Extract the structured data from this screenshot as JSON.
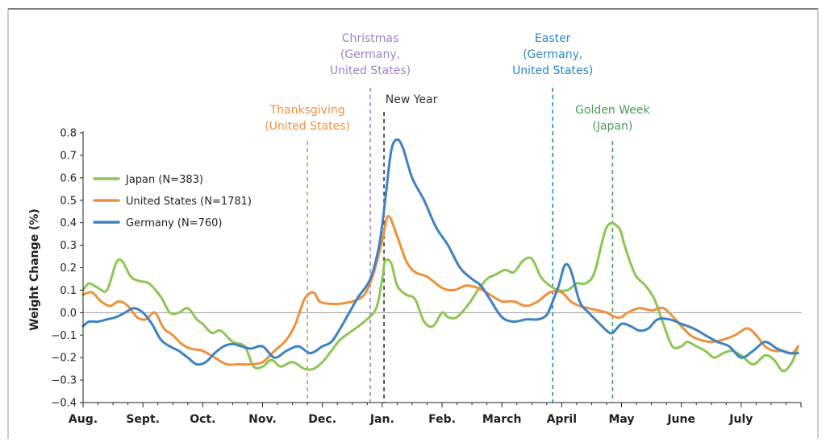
{
  "chart_data": {
    "type": "line",
    "ylabel": "Weight Change (%)",
    "xlabel": "",
    "ylim": [
      -0.4,
      0.8
    ],
    "yticks": [
      -0.4,
      -0.3,
      -0.2,
      -0.1,
      0.0,
      0.1,
      0.2,
      0.3,
      0.4,
      0.5,
      0.6,
      0.7,
      0.8
    ],
    "ytick_labels": [
      "−0.4",
      "−0.3",
      "−0.2",
      "−0.1",
      "0.0",
      "0.1",
      "0.2",
      "0.3",
      "0.4",
      "0.5",
      "0.6",
      "0.7",
      "0.8"
    ],
    "xlim": [
      0,
      12
    ],
    "x_unit_note": "",
    "months": [
      "Aug.",
      "Sept.",
      "Oct.",
      "Nov.",
      "Dec.",
      "Jan.",
      "Feb.",
      "March",
      "April",
      "May",
      "June",
      "July"
    ],
    "legend_position": "top-left",
    "series": [
      {
        "name": "Japan (N=383)",
        "color": "#8cc653",
        "x": [
          0,
          0.1,
          0.25,
          0.4,
          0.55,
          0.65,
          0.8,
          0.95,
          1.1,
          1.3,
          1.45,
          1.6,
          1.75,
          1.9,
          2.0,
          2.15,
          2.3,
          2.5,
          2.7,
          2.85,
          3.0,
          3.15,
          3.3,
          3.5,
          3.7,
          3.85,
          4.0,
          4.15,
          4.3,
          4.5,
          4.7,
          4.9,
          5.0,
          5.05,
          5.15,
          5.25,
          5.4,
          5.55,
          5.7,
          5.85,
          6.0,
          6.1,
          6.25,
          6.45,
          6.6,
          6.75,
          6.9,
          7.05,
          7.2,
          7.35,
          7.5,
          7.65,
          7.8,
          7.95,
          8.1,
          8.25,
          8.4,
          8.55,
          8.75,
          8.95,
          9.05,
          9.15,
          9.25,
          9.4,
          9.55,
          9.7,
          9.85,
          10.0,
          10.1,
          10.25,
          10.4,
          10.55,
          10.7,
          10.85,
          11.0,
          11.2,
          11.4,
          11.55,
          11.7,
          11.85,
          11.95
        ],
        "y": [
          0.1,
          0.13,
          0.11,
          0.1,
          0.22,
          0.23,
          0.16,
          0.14,
          0.13,
          0.07,
          0.0,
          0.0,
          0.02,
          -0.03,
          -0.05,
          -0.09,
          -0.08,
          -0.13,
          -0.15,
          -0.24,
          -0.24,
          -0.21,
          -0.24,
          -0.22,
          -0.25,
          -0.25,
          -0.22,
          -0.17,
          -0.12,
          -0.08,
          -0.04,
          0.02,
          0.15,
          0.23,
          0.22,
          0.12,
          0.08,
          0.06,
          -0.04,
          -0.06,
          0.0,
          -0.02,
          -0.02,
          0.04,
          0.1,
          0.15,
          0.17,
          0.19,
          0.18,
          0.23,
          0.24,
          0.16,
          0.12,
          0.1,
          0.1,
          0.13,
          0.13,
          0.18,
          0.38,
          0.38,
          0.3,
          0.22,
          0.16,
          0.12,
          0.06,
          -0.05,
          -0.15,
          -0.15,
          -0.13,
          -0.15,
          -0.17,
          -0.2,
          -0.18,
          -0.17,
          -0.19,
          -0.23,
          -0.19,
          -0.21,
          -0.26,
          -0.22,
          -0.15
        ]
      },
      {
        "name": "United States (N=1781)",
        "color": "#f0913a",
        "x": [
          0,
          0.15,
          0.3,
          0.45,
          0.6,
          0.75,
          0.9,
          1.05,
          1.2,
          1.35,
          1.5,
          1.65,
          1.8,
          2.0,
          2.2,
          2.4,
          2.6,
          2.8,
          3.0,
          3.2,
          3.4,
          3.55,
          3.7,
          3.85,
          3.95,
          4.1,
          4.3,
          4.5,
          4.7,
          4.85,
          5.0,
          5.1,
          5.25,
          5.4,
          5.55,
          5.75,
          6.0,
          6.2,
          6.4,
          6.6,
          6.8,
          7.0,
          7.2,
          7.4,
          7.6,
          7.8,
          8.0,
          8.15,
          8.3,
          8.45,
          8.6,
          8.75,
          8.9,
          9.0,
          9.1,
          9.3,
          9.5,
          9.7,
          9.9,
          10.0,
          10.15,
          10.3,
          10.5,
          10.7,
          10.9,
          11.1,
          11.25,
          11.4,
          11.55,
          11.7,
          11.85,
          11.95
        ],
        "y": [
          0.08,
          0.09,
          0.05,
          0.03,
          0.05,
          0.03,
          -0.02,
          -0.03,
          0.0,
          -0.07,
          -0.1,
          -0.14,
          -0.16,
          -0.17,
          -0.2,
          -0.23,
          -0.23,
          -0.23,
          -0.22,
          -0.17,
          -0.12,
          -0.05,
          0.06,
          0.09,
          0.05,
          0.04,
          0.04,
          0.05,
          0.08,
          0.17,
          0.32,
          0.43,
          0.34,
          0.23,
          0.18,
          0.16,
          0.11,
          0.1,
          0.12,
          0.11,
          0.08,
          0.05,
          0.05,
          0.03,
          0.05,
          0.09,
          0.09,
          0.05,
          0.03,
          0.02,
          0.01,
          0.0,
          -0.02,
          -0.02,
          0.0,
          0.02,
          0.01,
          0.02,
          -0.03,
          -0.06,
          -0.1,
          -0.12,
          -0.13,
          -0.12,
          -0.1,
          -0.07,
          -0.1,
          -0.15,
          -0.17,
          -0.17,
          -0.18,
          -0.15
        ]
      },
      {
        "name": "Germany (N=760)",
        "color": "#3f81c3",
        "x": [
          0,
          0.1,
          0.25,
          0.4,
          0.55,
          0.7,
          0.85,
          1.0,
          1.15,
          1.3,
          1.45,
          1.6,
          1.75,
          1.9,
          2.05,
          2.2,
          2.35,
          2.5,
          2.65,
          2.8,
          3.0,
          3.2,
          3.4,
          3.6,
          3.8,
          4.0,
          4.15,
          4.3,
          4.45,
          4.6,
          4.8,
          4.95,
          5.05,
          5.15,
          5.25,
          5.35,
          5.5,
          5.7,
          5.9,
          6.1,
          6.3,
          6.5,
          6.65,
          6.8,
          7.0,
          7.2,
          7.4,
          7.6,
          7.75,
          7.85,
          7.95,
          8.05,
          8.15,
          8.3,
          8.45,
          8.6,
          8.75,
          8.85,
          9.0,
          9.15,
          9.3,
          9.45,
          9.6,
          9.8,
          10.0,
          10.2,
          10.4,
          10.6,
          10.8,
          11.0,
          11.2,
          11.4,
          11.6,
          11.8,
          11.95
        ],
        "y": [
          -0.06,
          -0.04,
          -0.04,
          -0.03,
          -0.02,
          0.0,
          0.02,
          0.0,
          -0.05,
          -0.12,
          -0.15,
          -0.17,
          -0.2,
          -0.23,
          -0.22,
          -0.18,
          -0.15,
          -0.14,
          -0.15,
          -0.16,
          -0.15,
          -0.2,
          -0.17,
          -0.15,
          -0.18,
          -0.15,
          -0.13,
          -0.07,
          0.0,
          0.07,
          0.15,
          0.3,
          0.5,
          0.72,
          0.77,
          0.73,
          0.6,
          0.5,
          0.38,
          0.3,
          0.2,
          0.15,
          0.12,
          0.06,
          -0.02,
          -0.04,
          -0.03,
          -0.03,
          -0.01,
          0.05,
          0.12,
          0.21,
          0.19,
          0.05,
          0.0,
          -0.04,
          -0.08,
          -0.09,
          -0.05,
          -0.06,
          -0.08,
          -0.07,
          -0.03,
          -0.03,
          -0.05,
          -0.07,
          -0.1,
          -0.13,
          -0.15,
          -0.2,
          -0.17,
          -0.13,
          -0.16,
          -0.18,
          -0.18
        ]
      }
    ],
    "events": [
      {
        "lines": [
          "Thanksgiving",
          "(United States)"
        ],
        "x": 3.75,
        "color": "#f0913a"
      },
      {
        "lines": [
          "Christmas",
          "(Germany,",
          "United States)"
        ],
        "x": 4.8,
        "color": "#9b83c9"
      },
      {
        "lines": [
          "New Year"
        ],
        "x": 5.03,
        "color": "#333333"
      },
      {
        "lines": [
          "Easter",
          "(Germany,",
          "United States)"
        ],
        "x": 7.85,
        "color": "#2a86c2"
      },
      {
        "lines": [
          "Golden Week",
          "(Japan)"
        ],
        "x": 8.85,
        "color": "#4a9a58"
      }
    ]
  }
}
